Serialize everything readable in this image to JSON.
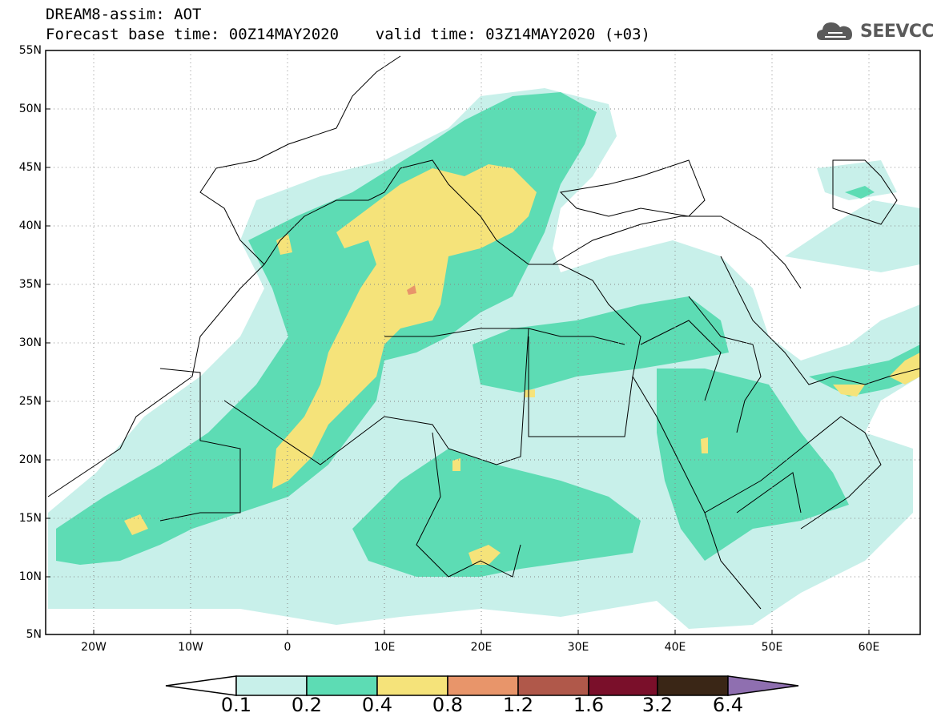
{
  "header": {
    "title_line1": "DREAM8-assim: AOT",
    "title_line2": "Forecast base time: 00Z14MAY2020    valid time: 03Z14MAY2020 (+03)",
    "logo_text": "SEEVCCC"
  },
  "map": {
    "field": "AOT",
    "lon_range": [
      -25,
      65
    ],
    "lat_range": [
      5,
      55
    ],
    "lat_labels": [
      "55N",
      "50N",
      "45N",
      "40N",
      "35N",
      "30N",
      "25N",
      "20N",
      "15N",
      "10N",
      "5N"
    ],
    "lon_labels": [
      "20W",
      "10W",
      "0",
      "10E",
      "20E",
      "30E",
      "40E",
      "50E",
      "60E"
    ],
    "gridlines": "dotted"
  },
  "colorbar": {
    "levels": [
      "0.1",
      "0.2",
      "0.4",
      "0.8",
      "1.2",
      "1.6",
      "3.2",
      "6.4"
    ],
    "colors": [
      "#c8f0ea",
      "#5ddcb4",
      "#f5e37a",
      "#e8956a",
      "#b0584a",
      "#7a0f2a",
      "#3a2616",
      "#8f6fb0"
    ],
    "left_arrow_color": "#ffffff"
  }
}
